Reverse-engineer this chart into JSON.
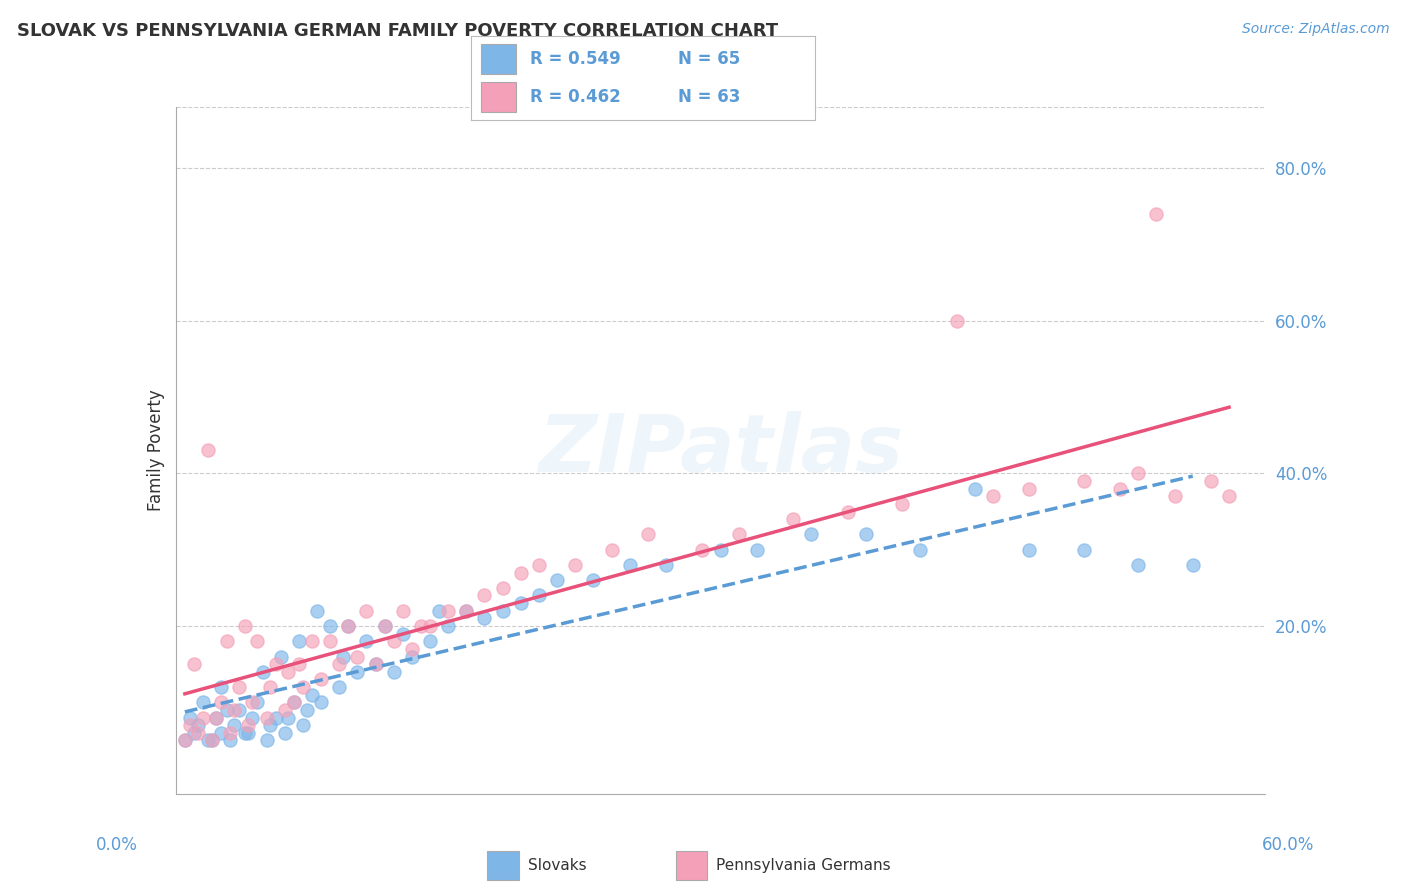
{
  "title": "SLOVAK VS PENNSYLVANIA GERMAN FAMILY POVERTY CORRELATION CHART",
  "source": "Source: ZipAtlas.com",
  "ylabel": "Family Poverty",
  "xmin": 0.0,
  "xmax": 0.6,
  "ymin": -0.02,
  "ymax": 0.88,
  "slovak_color": "#7EB6E8",
  "pagerman_color": "#F4A0B8",
  "slovak_line_color": "#5B9BD5",
  "pagerman_line_color": "#E8527A",
  "slovak_R": 0.549,
  "slovak_N": 65,
  "pagerman_R": 0.462,
  "pagerman_N": 63,
  "legend_label_1": "Slovaks",
  "legend_label_2": "Pennsylvania Germans",
  "axis_label_color": "#5B9BD5",
  "grid_color": "#CCCCCC",
  "background_color": "#FFFFFF",
  "slovak_points": [
    [
      0.005,
      0.05
    ],
    [
      0.008,
      0.08
    ],
    [
      0.01,
      0.06
    ],
    [
      0.012,
      0.07
    ],
    [
      0.015,
      0.1
    ],
    [
      0.018,
      0.05
    ],
    [
      0.02,
      0.05
    ],
    [
      0.022,
      0.08
    ],
    [
      0.025,
      0.06
    ],
    [
      0.025,
      0.12
    ],
    [
      0.028,
      0.09
    ],
    [
      0.03,
      0.05
    ],
    [
      0.032,
      0.07
    ],
    [
      0.035,
      0.09
    ],
    [
      0.038,
      0.06
    ],
    [
      0.04,
      0.06
    ],
    [
      0.042,
      0.08
    ],
    [
      0.045,
      0.1
    ],
    [
      0.048,
      0.14
    ],
    [
      0.05,
      0.05
    ],
    [
      0.052,
      0.07
    ],
    [
      0.055,
      0.08
    ],
    [
      0.058,
      0.16
    ],
    [
      0.06,
      0.06
    ],
    [
      0.062,
      0.08
    ],
    [
      0.065,
      0.1
    ],
    [
      0.068,
      0.18
    ],
    [
      0.07,
      0.07
    ],
    [
      0.072,
      0.09
    ],
    [
      0.075,
      0.11
    ],
    [
      0.078,
      0.22
    ],
    [
      0.08,
      0.1
    ],
    [
      0.085,
      0.2
    ],
    [
      0.09,
      0.12
    ],
    [
      0.092,
      0.16
    ],
    [
      0.095,
      0.2
    ],
    [
      0.1,
      0.14
    ],
    [
      0.105,
      0.18
    ],
    [
      0.11,
      0.15
    ],
    [
      0.115,
      0.2
    ],
    [
      0.12,
      0.14
    ],
    [
      0.125,
      0.19
    ],
    [
      0.13,
      0.16
    ],
    [
      0.14,
      0.18
    ],
    [
      0.145,
      0.22
    ],
    [
      0.15,
      0.2
    ],
    [
      0.16,
      0.22
    ],
    [
      0.17,
      0.21
    ],
    [
      0.18,
      0.22
    ],
    [
      0.19,
      0.23
    ],
    [
      0.2,
      0.24
    ],
    [
      0.21,
      0.26
    ],
    [
      0.23,
      0.26
    ],
    [
      0.25,
      0.28
    ],
    [
      0.27,
      0.28
    ],
    [
      0.3,
      0.3
    ],
    [
      0.32,
      0.3
    ],
    [
      0.35,
      0.32
    ],
    [
      0.38,
      0.32
    ],
    [
      0.41,
      0.3
    ],
    [
      0.44,
      0.38
    ],
    [
      0.47,
      0.3
    ],
    [
      0.5,
      0.3
    ],
    [
      0.53,
      0.28
    ],
    [
      0.56,
      0.28
    ]
  ],
  "pagerman_points": [
    [
      0.005,
      0.05
    ],
    [
      0.008,
      0.07
    ],
    [
      0.01,
      0.15
    ],
    [
      0.012,
      0.06
    ],
    [
      0.015,
      0.08
    ],
    [
      0.018,
      0.43
    ],
    [
      0.02,
      0.05
    ],
    [
      0.022,
      0.08
    ],
    [
      0.025,
      0.1
    ],
    [
      0.028,
      0.18
    ],
    [
      0.03,
      0.06
    ],
    [
      0.032,
      0.09
    ],
    [
      0.035,
      0.12
    ],
    [
      0.038,
      0.2
    ],
    [
      0.04,
      0.07
    ],
    [
      0.042,
      0.1
    ],
    [
      0.045,
      0.18
    ],
    [
      0.05,
      0.08
    ],
    [
      0.052,
      0.12
    ],
    [
      0.055,
      0.15
    ],
    [
      0.06,
      0.09
    ],
    [
      0.062,
      0.14
    ],
    [
      0.065,
      0.1
    ],
    [
      0.068,
      0.15
    ],
    [
      0.07,
      0.12
    ],
    [
      0.075,
      0.18
    ],
    [
      0.08,
      0.13
    ],
    [
      0.085,
      0.18
    ],
    [
      0.09,
      0.15
    ],
    [
      0.095,
      0.2
    ],
    [
      0.1,
      0.16
    ],
    [
      0.105,
      0.22
    ],
    [
      0.11,
      0.15
    ],
    [
      0.115,
      0.2
    ],
    [
      0.12,
      0.18
    ],
    [
      0.125,
      0.22
    ],
    [
      0.13,
      0.17
    ],
    [
      0.135,
      0.2
    ],
    [
      0.14,
      0.2
    ],
    [
      0.15,
      0.22
    ],
    [
      0.16,
      0.22
    ],
    [
      0.17,
      0.24
    ],
    [
      0.18,
      0.25
    ],
    [
      0.19,
      0.27
    ],
    [
      0.2,
      0.28
    ],
    [
      0.22,
      0.28
    ],
    [
      0.24,
      0.3
    ],
    [
      0.26,
      0.32
    ],
    [
      0.29,
      0.3
    ],
    [
      0.31,
      0.32
    ],
    [
      0.34,
      0.34
    ],
    [
      0.37,
      0.35
    ],
    [
      0.4,
      0.36
    ],
    [
      0.43,
      0.6
    ],
    [
      0.45,
      0.37
    ],
    [
      0.47,
      0.38
    ],
    [
      0.5,
      0.39
    ],
    [
      0.52,
      0.38
    ],
    [
      0.53,
      0.4
    ],
    [
      0.54,
      0.74
    ],
    [
      0.55,
      0.37
    ],
    [
      0.57,
      0.39
    ],
    [
      0.58,
      0.37
    ]
  ]
}
